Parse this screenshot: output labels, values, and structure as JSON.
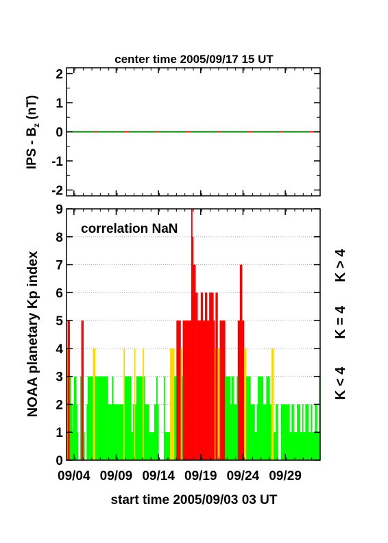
{
  "chart_data": [
    {
      "type": "line",
      "title": "center time 2005/09/17 15 UT",
      "ylabel_main": "IPS - B",
      "ylabel_sub": "z",
      "ylabel_unit": " (nT)",
      "ylim": [
        -2.2,
        2.2
      ],
      "y_ticks": [
        "2",
        "1",
        "0",
        "-1",
        "-2"
      ],
      "x_range_days": [
        0,
        30
      ],
      "series": [
        {
          "name": "",
          "color": "#ff0000",
          "x": [
            0,
            30
          ],
          "values": [
            0,
            0
          ]
        },
        {
          "name": "",
          "color": "#008000",
          "style": "dashed",
          "x": [
            0,
            30
          ],
          "values": [
            0,
            0
          ]
        }
      ]
    },
    {
      "type": "bar",
      "ylabel": "NOAA planetary Kp index",
      "xlabel": "start time 2005/09/03 03 UT",
      "annotation": "correlation NaN",
      "ylim": [
        0,
        9
      ],
      "y_ticks": [
        "0",
        "1",
        "2",
        "3",
        "4",
        "5",
        "6",
        "7",
        "8",
        "9"
      ],
      "x_tick_labels": [
        "09/04",
        "09/09",
        "09/14",
        "09/19",
        "09/24",
        "09/29"
      ],
      "x_tick_positions_days": [
        0.875,
        5.875,
        10.875,
        15.875,
        20.875,
        25.875
      ],
      "x_range_days": [
        0,
        30
      ],
      "bin_hours": 3,
      "thresholds": {
        "low_below": 4,
        "equal": 4,
        "high_above": 4
      },
      "legend": [
        {
          "label": "K < 4",
          "color": "#00ff00"
        },
        {
          "label": "K = 4",
          "color": "#ffd800"
        },
        {
          "label": "K > 4",
          "color": "#ff0000"
        }
      ],
      "colors": {
        "low": "#00ff00",
        "mid": "#ffd800",
        "high": "#ff0000"
      },
      "values": [
        4,
        5,
        5,
        3,
        2,
        1,
        2,
        3,
        3,
        2,
        1,
        0,
        0,
        3,
        5,
        5,
        1,
        0,
        0,
        2,
        3,
        3,
        3,
        3,
        3,
        4,
        4,
        3,
        3,
        3,
        3,
        3,
        3,
        3,
        3,
        3,
        3,
        3,
        3,
        2,
        2,
        2,
        2,
        3,
        2,
        2,
        2,
        2,
        2,
        2,
        2,
        2,
        2,
        2,
        4,
        3,
        3,
        3,
        3,
        3,
        3,
        1,
        1,
        2,
        4,
        2,
        3,
        3,
        3,
        3,
        3,
        3,
        4,
        3,
        2,
        2,
        2,
        2,
        1,
        1,
        1,
        1,
        1,
        2,
        2,
        3,
        2,
        0,
        0,
        0,
        0,
        0,
        3,
        1,
        1,
        1,
        1,
        1,
        4,
        4,
        4,
        4,
        3,
        3,
        5,
        5,
        5,
        5,
        4,
        3,
        5,
        5,
        5,
        5,
        5,
        5,
        5,
        5,
        9,
        8,
        7,
        7,
        6,
        6,
        5,
        5,
        5,
        6,
        6,
        5,
        5,
        6,
        6,
        5,
        5,
        6,
        6,
        6,
        6,
        5,
        4,
        6,
        6,
        4,
        4,
        5,
        5,
        5,
        5,
        5,
        3,
        3,
        3,
        3,
        3,
        2,
        3,
        3,
        2,
        2,
        2,
        3,
        5,
        5,
        7,
        7,
        5,
        5,
        4,
        4,
        3,
        3,
        3,
        3,
        2,
        2,
        2,
        2,
        1,
        1,
        2,
        3,
        3,
        3,
        3,
        3,
        2,
        2,
        2,
        3,
        3,
        3,
        2,
        2,
        4,
        4,
        1,
        1,
        2,
        2,
        0,
        0,
        0,
        2,
        2,
        2,
        2,
        2,
        2,
        2,
        2,
        1,
        1,
        2,
        2,
        1,
        1,
        1,
        2,
        2,
        2,
        1,
        1,
        2,
        1,
        1,
        2,
        2,
        2,
        1,
        1,
        2,
        1,
        1,
        1,
        2,
        2,
        1,
        1,
        3,
        3,
        2,
        2,
        1,
        1,
        2,
        2,
        1,
        2,
        2,
        2,
        1,
        1,
        3,
        1,
        1,
        1,
        1,
        1,
        1,
        1,
        1,
        1,
        1,
        0,
        0,
        1,
        2,
        2,
        2,
        3,
        3,
        2,
        2,
        2,
        2,
        3,
        4,
        3,
        2,
        1,
        1,
        4,
        4,
        2,
        2,
        4,
        4,
        3,
        2,
        2,
        1,
        3,
        3,
        1,
        2,
        2,
        2,
        4,
        4,
        3,
        1,
        1,
        2,
        3,
        3,
        2,
        3,
        3,
        2,
        2,
        4,
        4,
        3,
        2,
        1,
        2,
        3,
        3,
        2,
        3,
        3,
        3,
        4,
        2,
        2,
        3,
        3,
        4,
        4,
        3,
        3,
        3,
        3
      ]
    }
  ]
}
